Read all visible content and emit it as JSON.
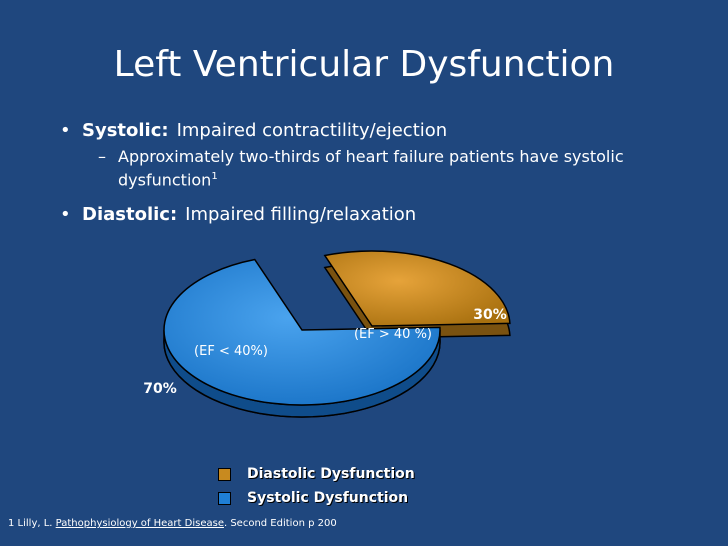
{
  "slide": {
    "title": "Left Ventricular Dysfunction",
    "bullets": [
      {
        "label": "Systolic:",
        "text": "Impaired contractility/ejection"
      },
      {
        "label": "Diastolic:",
        "text": "Impaired filling/relaxation"
      }
    ],
    "sub_bullet": {
      "text": "Approximately two-thirds of heart failure patients have systolic dysfunction",
      "superscript": "1"
    },
    "footnote": {
      "prefix": "1  Lilly, L.",
      "book": "Pathophysiology of Heart Disease",
      "suffix": ".  Second Edition p 200"
    }
  },
  "colors": {
    "background": "#1f477e",
    "diastolic": "#c88a1f",
    "systolic": "#1f7fd6"
  },
  "chart_data": {
    "type": "pie",
    "series": [
      {
        "name": "Diastolic Dysfunction",
        "value": 30,
        "value_label": "30%",
        "inner_label": "(EF > 40 %)",
        "color": "#c88a1f"
      },
      {
        "name": "Systolic Dysfunction",
        "value": 70,
        "value_label": "70%",
        "inner_label": "(EF < 40%)",
        "color": "#1f7fd6"
      }
    ],
    "exploded": "Diastolic Dysfunction",
    "legend_position": "bottom"
  }
}
